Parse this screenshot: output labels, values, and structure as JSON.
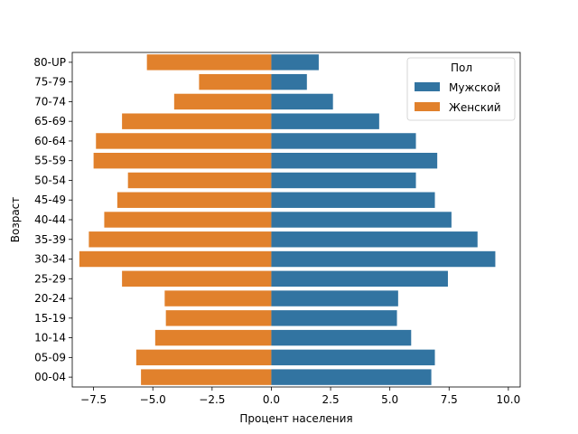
{
  "chart_data": {
    "type": "bar",
    "orientation": "horizontal",
    "title": "",
    "xlabel": "Процент населения",
    "ylabel": "Возраст",
    "xlim": [
      -8.4,
      10.5
    ],
    "xticks": [
      -7.5,
      -5.0,
      -2.5,
      0.0,
      2.5,
      5.0,
      7.5,
      10.0
    ],
    "xtick_labels": [
      "−7.5",
      "−5.0",
      "−2.5",
      "0.0",
      "2.5",
      "5.0",
      "7.5",
      "10.0"
    ],
    "categories": [
      "80-UP",
      "75-79",
      "70-74",
      "65-69",
      "60-64",
      "55-59",
      "50-54",
      "45-49",
      "40-44",
      "35-39",
      "30-34",
      "25-29",
      "20-24",
      "15-19",
      "10-14",
      "05-09",
      "00-04"
    ],
    "series": [
      {
        "name": "Мужской",
        "color": "#3274a1",
        "values": [
          2.0,
          1.5,
          2.6,
          4.55,
          6.1,
          7.0,
          6.1,
          6.9,
          7.6,
          8.7,
          9.45,
          7.45,
          5.35,
          5.3,
          5.9,
          6.9,
          6.75
        ]
      },
      {
        "name": "Женский",
        "color": "#e1812c",
        "values": [
          -5.25,
          -3.05,
          -4.1,
          -6.3,
          -7.4,
          -7.5,
          -6.05,
          -6.5,
          -7.05,
          -7.7,
          -8.1,
          -6.3,
          -4.5,
          -4.45,
          -4.9,
          -5.7,
          -5.5
        ]
      }
    ],
    "legend": {
      "title": "Пол",
      "position": "top-right",
      "entries": [
        "Мужской",
        "Женский"
      ]
    },
    "grid": false
  }
}
